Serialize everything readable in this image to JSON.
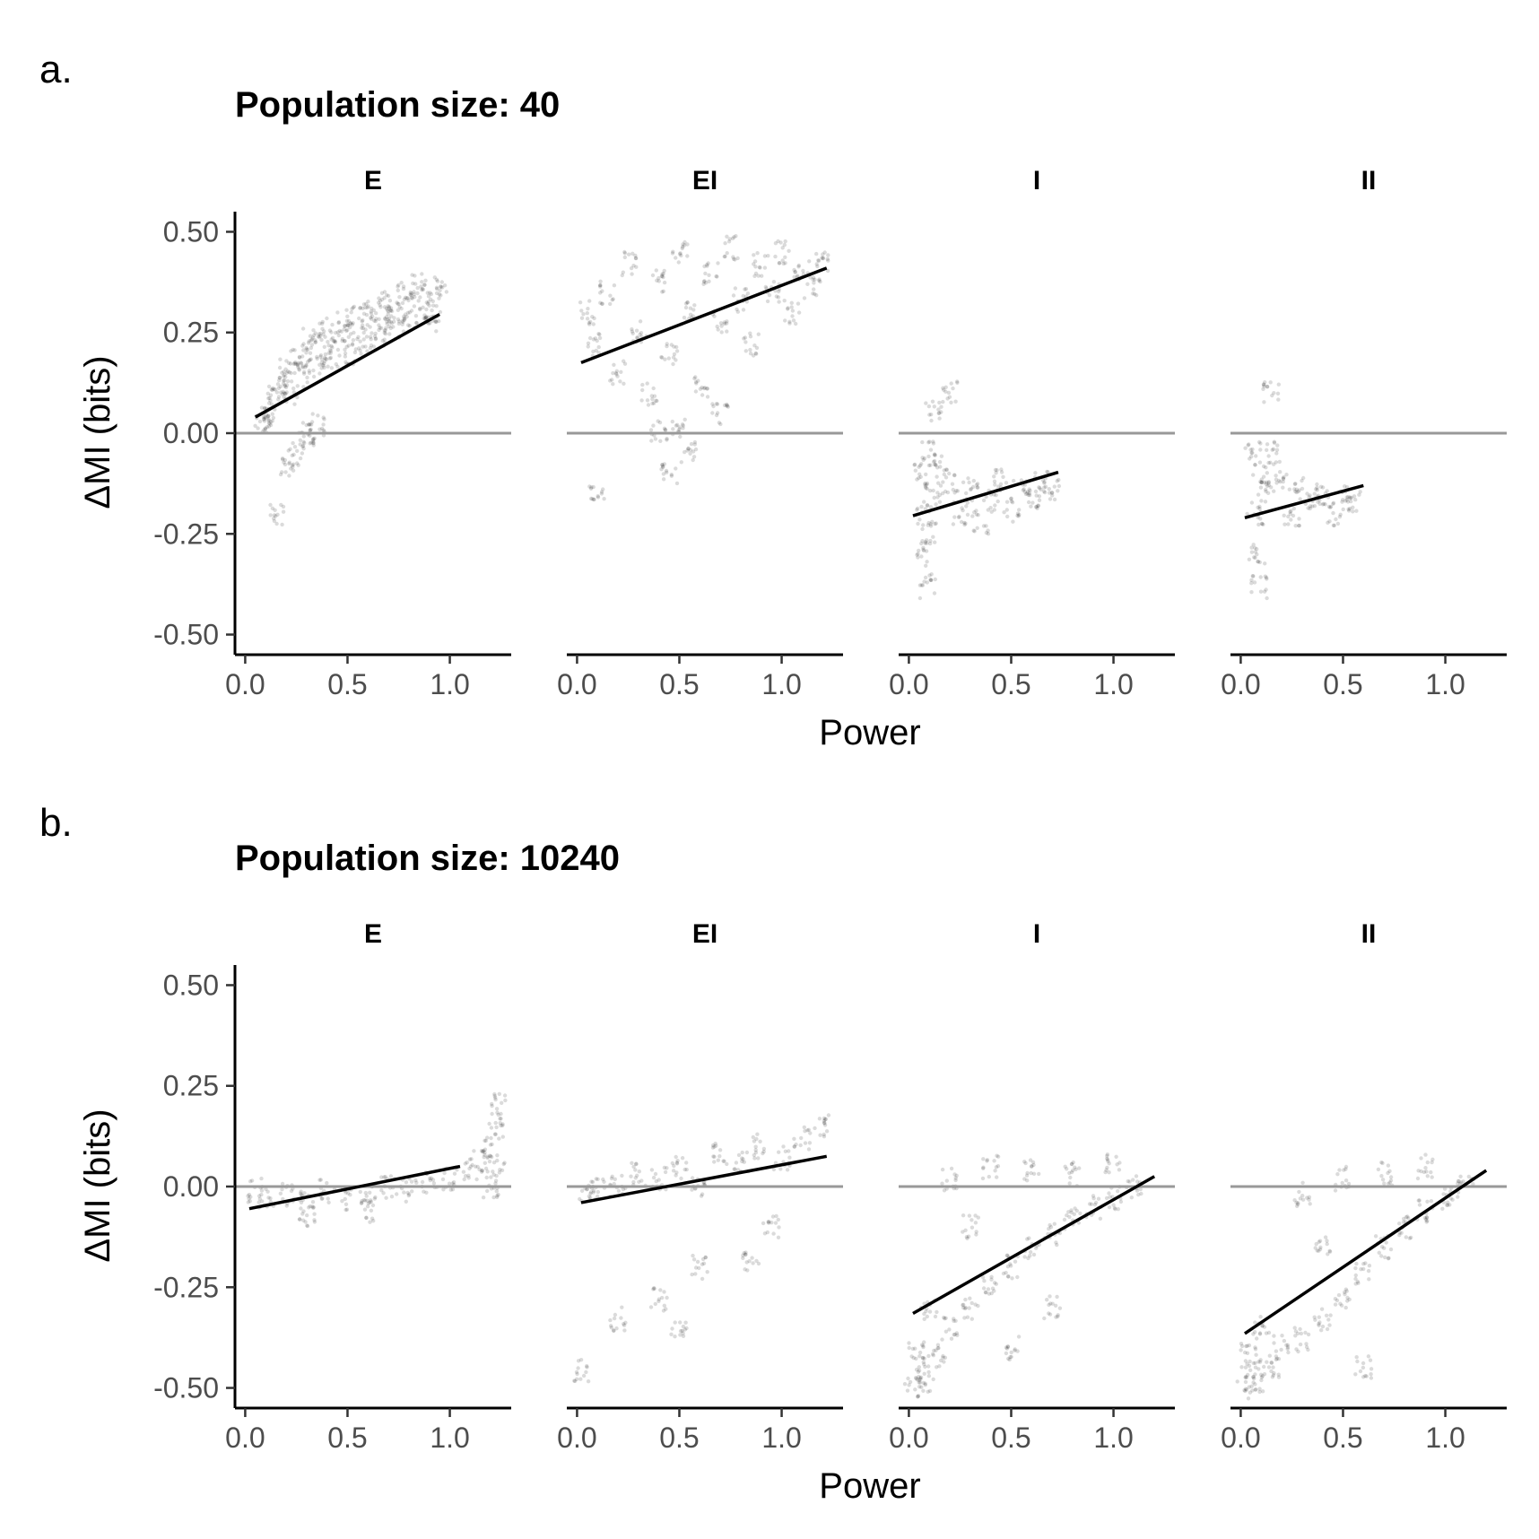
{
  "figure": {
    "panels": [
      {
        "letter": "a.",
        "title": "Population size: 40"
      },
      {
        "letter": "b.",
        "title": "Population size: 10240"
      }
    ],
    "xlabel": "Power",
    "ylabel": "ΔMI (bits)"
  },
  "chart_data": [
    {
      "type": "scatter",
      "title": "Population size: 40",
      "xlabel": "Power",
      "ylabel": "ΔMI (bits)",
      "xlim": [
        -0.05,
        1.3
      ],
      "ylim": [
        -0.55,
        0.55
      ],
      "xticks": [
        0.0,
        0.5,
        1.0
      ],
      "xtick_labels": [
        "0.0",
        "0.5",
        "1.0"
      ],
      "yticks": [
        0.5,
        0.25,
        0.0,
        -0.25,
        -0.5
      ],
      "ytick_labels": [
        "0.50",
        "0.25",
        "0.00",
        "-0.25",
        "-0.50"
      ],
      "reference_line": {
        "y": 0.0,
        "color": "#999999"
      },
      "point_color": "#000000",
      "fit_color": "#000000",
      "grid": false,
      "facets": [
        {
          "label": "E",
          "fit": [
            [
              0.05,
              0.04
            ],
            [
              0.95,
              0.295
            ]
          ],
          "points": [
            [
              0.08,
              0.02
            ],
            [
              0.1,
              0.04
            ],
            [
              0.12,
              0.06
            ],
            [
              0.15,
              0.09
            ],
            [
              0.18,
              0.12
            ],
            [
              0.2,
              0.16
            ],
            [
              0.22,
              0.1
            ],
            [
              0.25,
              0.18
            ],
            [
              0.28,
              0.14
            ],
            [
              0.3,
              0.2
            ],
            [
              0.32,
              0.23
            ],
            [
              0.35,
              0.17
            ],
            [
              0.38,
              0.21
            ],
            [
              0.4,
              0.26
            ],
            [
              0.42,
              0.19
            ],
            [
              0.45,
              0.23
            ],
            [
              0.48,
              0.28
            ],
            [
              0.5,
              0.2
            ],
            [
              0.52,
              0.25
            ],
            [
              0.55,
              0.29
            ],
            [
              0.58,
              0.22
            ],
            [
              0.6,
              0.27
            ],
            [
              0.62,
              0.31
            ],
            [
              0.65,
              0.24
            ],
            [
              0.68,
              0.29
            ],
            [
              0.7,
              0.33
            ],
            [
              0.72,
              0.26
            ],
            [
              0.75,
              0.3
            ],
            [
              0.78,
              0.35
            ],
            [
              0.8,
              0.28
            ],
            [
              0.82,
              0.32
            ],
            [
              0.85,
              0.37
            ],
            [
              0.88,
              0.3
            ],
            [
              0.9,
              0.34
            ],
            [
              0.92,
              0.28
            ],
            [
              0.95,
              0.36
            ],
            [
              0.3,
              -0.02
            ],
            [
              0.32,
              0.0
            ],
            [
              0.2,
              -0.08
            ],
            [
              0.15,
              -0.2
            ],
            [
              0.35,
              0.02
            ],
            [
              0.25,
              -0.05
            ]
          ]
        },
        {
          "label": "EI",
          "fit": [
            [
              0.02,
              0.175
            ],
            [
              1.22,
              0.41
            ]
          ],
          "points": [
            [
              0.05,
              0.3
            ],
            [
              0.08,
              0.22
            ],
            [
              0.15,
              0.35
            ],
            [
              0.2,
              0.15
            ],
            [
              0.25,
              0.42
            ],
            [
              0.3,
              0.25
            ],
            [
              0.35,
              0.1
            ],
            [
              0.4,
              0.38
            ],
            [
              0.45,
              0.2
            ],
            [
              0.5,
              0.45
            ],
            [
              0.55,
              0.3
            ],
            [
              0.6,
              0.12
            ],
            [
              0.65,
              0.4
            ],
            [
              0.7,
              0.28
            ],
            [
              0.75,
              0.46
            ],
            [
              0.8,
              0.33
            ],
            [
              0.85,
              0.22
            ],
            [
              0.9,
              0.42
            ],
            [
              0.95,
              0.35
            ],
            [
              1.0,
              0.45
            ],
            [
              1.05,
              0.3
            ],
            [
              1.1,
              0.4
            ],
            [
              1.15,
              0.36
            ],
            [
              1.2,
              0.43
            ],
            [
              0.7,
              0.05
            ],
            [
              0.5,
              0.02
            ],
            [
              0.4,
              0.0
            ],
            [
              0.45,
              -0.1
            ],
            [
              0.55,
              -0.05
            ],
            [
              0.1,
              -0.14
            ]
          ]
        },
        {
          "label": "I",
          "fit": [
            [
              0.02,
              -0.205
            ],
            [
              0.73,
              -0.097
            ]
          ],
          "points": [
            [
              0.06,
              -0.1
            ],
            [
              0.07,
              -0.2
            ],
            [
              0.08,
              -0.3
            ],
            [
              0.09,
              -0.38
            ],
            [
              0.1,
              -0.05
            ],
            [
              0.1,
              -0.25
            ],
            [
              0.12,
              -0.15
            ],
            [
              0.15,
              -0.08
            ],
            [
              0.2,
              -0.12
            ],
            [
              0.25,
              -0.2
            ],
            [
              0.3,
              -0.14
            ],
            [
              0.35,
              -0.22
            ],
            [
              0.4,
              -0.17
            ],
            [
              0.45,
              -0.12
            ],
            [
              0.5,
              -0.19
            ],
            [
              0.55,
              -0.14
            ],
            [
              0.6,
              -0.16
            ],
            [
              0.65,
              -0.12
            ],
            [
              0.7,
              -0.14
            ],
            [
              0.12,
              0.05
            ],
            [
              0.2,
              0.1
            ]
          ]
        },
        {
          "label": "II",
          "fit": [
            [
              0.02,
              -0.21
            ],
            [
              0.6,
              -0.13
            ]
          ],
          "points": [
            [
              0.06,
              -0.05
            ],
            [
              0.07,
              -0.2
            ],
            [
              0.08,
              -0.3
            ],
            [
              0.09,
              -0.38
            ],
            [
              0.1,
              -0.1
            ],
            [
              0.12,
              -0.15
            ],
            [
              0.15,
              -0.05
            ],
            [
              0.2,
              -0.12
            ],
            [
              0.25,
              -0.2
            ],
            [
              0.3,
              -0.14
            ],
            [
              0.35,
              -0.18
            ],
            [
              0.4,
              -0.15
            ],
            [
              0.45,
              -0.2
            ],
            [
              0.5,
              -0.16
            ],
            [
              0.55,
              -0.17
            ],
            [
              0.15,
              0.1
            ]
          ]
        }
      ]
    },
    {
      "type": "scatter",
      "title": "Population size: 10240",
      "xlabel": "Power",
      "ylabel": "ΔMI (bits)",
      "xlim": [
        -0.05,
        1.3
      ],
      "ylim": [
        -0.55,
        0.55
      ],
      "xticks": [
        0.0,
        0.5,
        1.0
      ],
      "xtick_labels": [
        "0.0",
        "0.5",
        "1.0"
      ],
      "yticks": [
        0.5,
        0.25,
        0.0,
        -0.25,
        -0.5
      ],
      "ytick_labels": [
        "0.50",
        "0.25",
        "0.00",
        "-0.25",
        "-0.50"
      ],
      "reference_line": {
        "y": 0.0,
        "color": "#999999"
      },
      "point_color": "#000000",
      "fit_color": "#000000",
      "grid": false,
      "facets": [
        {
          "label": "E",
          "fit": [
            [
              0.02,
              -0.055
            ],
            [
              1.05,
              0.05
            ]
          ],
          "points": [
            [
              0.05,
              -0.01
            ],
            [
              0.1,
              -0.03
            ],
            [
              0.2,
              -0.02
            ],
            [
              0.3,
              -0.04
            ],
            [
              0.4,
              -0.01
            ],
            [
              0.5,
              -0.03
            ],
            [
              0.6,
              -0.02
            ],
            [
              0.7,
              0.0
            ],
            [
              0.8,
              -0.01
            ],
            [
              0.9,
              0.01
            ],
            [
              1.0,
              0.02
            ],
            [
              1.1,
              0.04
            ],
            [
              1.15,
              0.06
            ],
            [
              1.2,
              0.1
            ],
            [
              1.22,
              0.15
            ],
            [
              1.24,
              0.2
            ],
            [
              1.23,
              0.05
            ],
            [
              1.2,
              0.0
            ],
            [
              0.6,
              -0.06
            ],
            [
              0.3,
              -0.07
            ]
          ]
        },
        {
          "label": "EI",
          "fit": [
            [
              0.02,
              -0.04
            ],
            [
              1.22,
              0.075
            ]
          ],
          "points": [
            [
              0.05,
              -0.02
            ],
            [
              0.1,
              -0.01
            ],
            [
              0.2,
              0.0
            ],
            [
              0.3,
              0.03
            ],
            [
              0.4,
              0.02
            ],
            [
              0.5,
              0.05
            ],
            [
              0.6,
              0.0
            ],
            [
              0.7,
              0.08
            ],
            [
              0.8,
              0.06
            ],
            [
              0.9,
              0.1
            ],
            [
              1.0,
              0.07
            ],
            [
              1.1,
              0.12
            ],
            [
              1.2,
              0.15
            ],
            [
              0.95,
              -0.1
            ],
            [
              0.85,
              -0.18
            ],
            [
              0.6,
              -0.2
            ],
            [
              0.4,
              -0.28
            ],
            [
              0.2,
              -0.33
            ],
            [
              0.02,
              -0.46
            ],
            [
              0.5,
              -0.35
            ]
          ]
        },
        {
          "label": "I",
          "fit": [
            [
              0.02,
              -0.315
            ],
            [
              1.2,
              0.025
            ]
          ],
          "points": [
            [
              0.02,
              -0.5
            ],
            [
              0.04,
              -0.4
            ],
            [
              0.06,
              -0.45
            ],
            [
              0.08,
              -0.48
            ],
            [
              0.1,
              -0.3
            ],
            [
              0.15,
              -0.42
            ],
            [
              0.2,
              -0.35
            ],
            [
              0.3,
              -0.3
            ],
            [
              0.4,
              -0.25
            ],
            [
              0.5,
              -0.2
            ],
            [
              0.6,
              -0.15
            ],
            [
              0.7,
              -0.12
            ],
            [
              0.8,
              -0.08
            ],
            [
              0.9,
              -0.05
            ],
            [
              1.0,
              -0.03
            ],
            [
              1.1,
              0.0
            ],
            [
              0.2,
              0.02
            ],
            [
              0.4,
              0.05
            ],
            [
              0.6,
              0.04
            ],
            [
              0.8,
              0.03
            ],
            [
              1.0,
              0.05
            ],
            [
              0.3,
              -0.1
            ],
            [
              0.5,
              -0.4
            ],
            [
              0.7,
              -0.3
            ]
          ]
        },
        {
          "label": "II",
          "fit": [
            [
              0.02,
              -0.365
            ],
            [
              1.2,
              0.04
            ]
          ],
          "points": [
            [
              0.02,
              -0.5
            ],
            [
              0.04,
              -0.42
            ],
            [
              0.06,
              -0.45
            ],
            [
              0.08,
              -0.48
            ],
            [
              0.1,
              -0.35
            ],
            [
              0.15,
              -0.45
            ],
            [
              0.2,
              -0.4
            ],
            [
              0.3,
              -0.38
            ],
            [
              0.4,
              -0.33
            ],
            [
              0.5,
              -0.28
            ],
            [
              0.6,
              -0.22
            ],
            [
              0.7,
              -0.15
            ],
            [
              0.8,
              -0.1
            ],
            [
              0.9,
              -0.06
            ],
            [
              1.0,
              -0.03
            ],
            [
              1.1,
              0.0
            ],
            [
              0.3,
              -0.02
            ],
            [
              0.5,
              0.02
            ],
            [
              0.7,
              0.03
            ],
            [
              0.9,
              0.05
            ],
            [
              0.4,
              -0.15
            ],
            [
              0.6,
              -0.45
            ]
          ]
        }
      ]
    }
  ]
}
